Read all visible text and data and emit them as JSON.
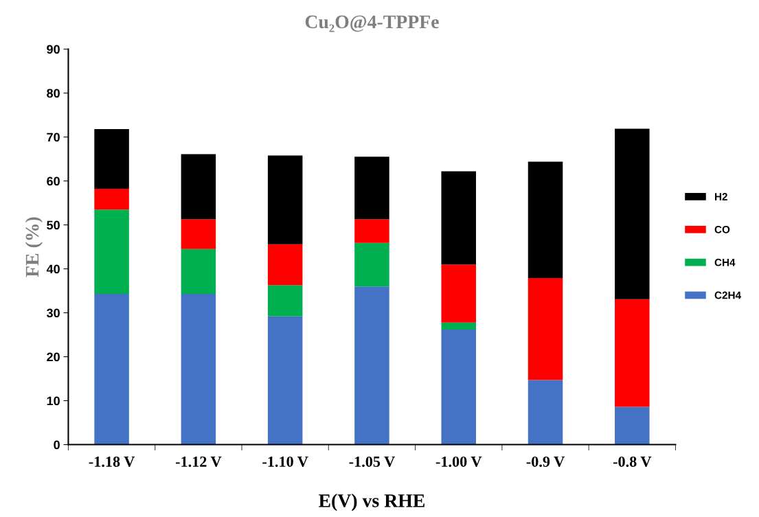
{
  "chart_data": {
    "type": "bar",
    "title": "Cu₂O@4-TPPFe",
    "xlabel": "E(V) vs RHE",
    "ylabel": "FE (%)",
    "categories": [
      "-1.18 V",
      "-1.12 V",
      "-1.10 V",
      "-1.05 V",
      "-1.00 V",
      "-0.9 V",
      "-0.8 V"
    ],
    "series": [
      {
        "name": "C2H4",
        "color": "#4472c4",
        "values": [
          34.3,
          34.3,
          29.2,
          36.0,
          26.2,
          14.7,
          8.6
        ]
      },
      {
        "name": "CH4",
        "color": "#00b050",
        "values": [
          19.2,
          10.2,
          7.1,
          9.9,
          1.6,
          0,
          0
        ]
      },
      {
        "name": "CO",
        "color": "#ff0000",
        "values": [
          4.7,
          6.8,
          9.3,
          5.4,
          13.2,
          23.2,
          24.5
        ]
      },
      {
        "name": "H2",
        "color": "#000000",
        "values": [
          13.6,
          14.8,
          20.2,
          14.2,
          21.2,
          26.5,
          38.8
        ]
      }
    ],
    "stacked": true,
    "ylim": [
      0,
      90
    ],
    "yticks": [
      0,
      10,
      20,
      30,
      40,
      50,
      60,
      70,
      80,
      90
    ],
    "grid": false,
    "legend": "right"
  }
}
